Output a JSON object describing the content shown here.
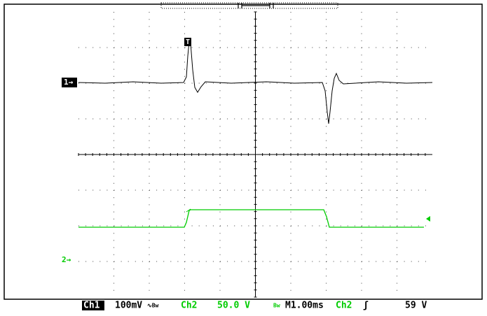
{
  "screen": {
    "markers": {
      "ch1": "1→",
      "ch2": "2→",
      "trigger": "T"
    },
    "status": {
      "ch1_label": "Ch1",
      "ch1_scale": "100mV",
      "ch1_bw": "∿Bw",
      "ch2_label": "Ch2",
      "ch2_scale": "50.0 V",
      "ch2_bw": "Bw",
      "timebase": "M1.00ms",
      "trigger_source": "Ch2",
      "trigger_slope": "ʃ",
      "trigger_level": "59 V"
    }
  }
}
